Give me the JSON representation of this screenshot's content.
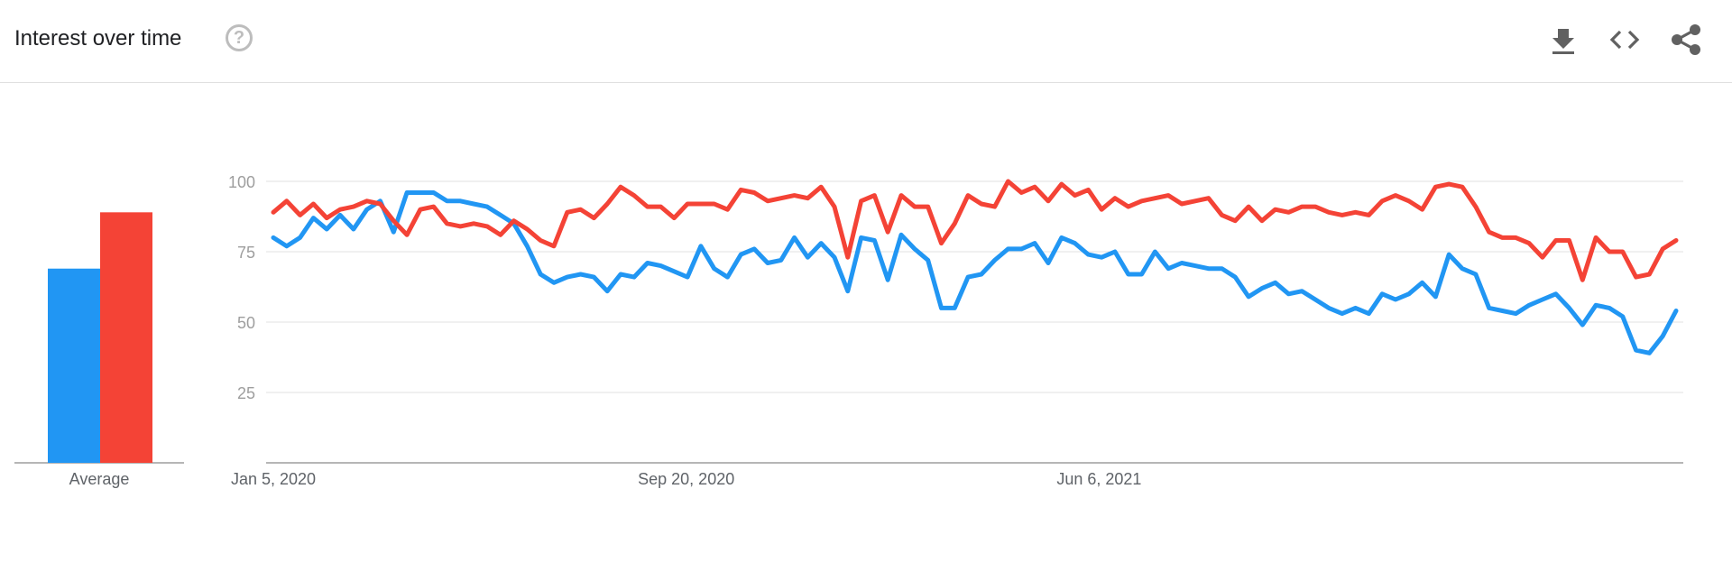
{
  "header": {
    "title": "Interest over time",
    "help_glyph": "?",
    "tools": [
      "download-icon",
      "embed-code-icon",
      "share-icon"
    ]
  },
  "chart_data": [
    {
      "type": "bar",
      "categories": [
        "Average"
      ],
      "series": [
        {
          "color": "#2196F3",
          "values": [
            69
          ]
        },
        {
          "color": "#F44336",
          "values": [
            89
          ]
        }
      ],
      "ylim": [
        0,
        100
      ]
    },
    {
      "type": "line",
      "ylim": [
        0,
        100
      ],
      "yticks": [
        25,
        50,
        75,
        100
      ],
      "grid": true,
      "x_range": [
        "2020-01-05",
        "2022-06-12"
      ],
      "xticks": [
        {
          "date": "2020-01-05",
          "label": "Jan 5, 2020"
        },
        {
          "date": "2020-09-20",
          "label": "Sep 20, 2020"
        },
        {
          "date": "2021-06-06",
          "label": "Jun 6, 2021"
        }
      ],
      "series": [
        {
          "color": "#2196F3",
          "values": [
            80,
            77,
            80,
            87,
            83,
            88,
            83,
            90,
            93,
            82,
            96,
            96,
            96,
            93,
            93,
            92,
            91,
            88,
            85,
            77,
            67,
            64,
            66,
            67,
            66,
            61,
            67,
            66,
            71,
            70,
            68,
            66,
            77,
            69,
            66,
            74,
            76,
            71,
            72,
            80,
            73,
            78,
            73,
            61,
            80,
            79,
            65,
            81,
            76,
            72,
            55,
            55,
            66,
            67,
            72,
            76,
            76,
            78,
            71,
            80,
            78,
            74,
            73,
            75,
            67,
            67,
            75,
            69,
            71,
            70,
            69,
            69,
            66,
            59,
            62,
            64,
            60,
            61,
            58,
            55,
            53,
            55,
            53,
            60,
            58,
            60,
            64,
            59,
            74,
            69,
            67,
            55,
            54,
            53,
            56,
            58,
            60,
            55,
            49,
            56,
            55,
            52,
            40,
            39,
            45,
            54
          ]
        },
        {
          "color": "#F44336",
          "values": [
            89,
            93,
            88,
            92,
            87,
            90,
            91,
            93,
            92,
            86,
            81,
            90,
            91,
            85,
            84,
            85,
            84,
            81,
            86,
            83,
            79,
            77,
            89,
            90,
            87,
            92,
            98,
            95,
            91,
            91,
            87,
            92,
            92,
            92,
            90,
            97,
            96,
            93,
            94,
            95,
            94,
            98,
            91,
            73,
            93,
            95,
            82,
            95,
            91,
            91,
            78,
            85,
            95,
            92,
            91,
            100,
            96,
            98,
            93,
            99,
            95,
            97,
            90,
            94,
            91,
            93,
            94,
            95,
            92,
            93,
            94,
            88,
            86,
            91,
            86,
            90,
            89,
            91,
            91,
            89,
            88,
            89,
            88,
            93,
            95,
            93,
            90,
            98,
            99,
            98,
            91,
            82,
            80,
            80,
            78,
            73,
            79,
            79,
            65,
            80,
            75,
            75,
            66,
            67,
            76,
            79
          ]
        }
      ]
    }
  ]
}
